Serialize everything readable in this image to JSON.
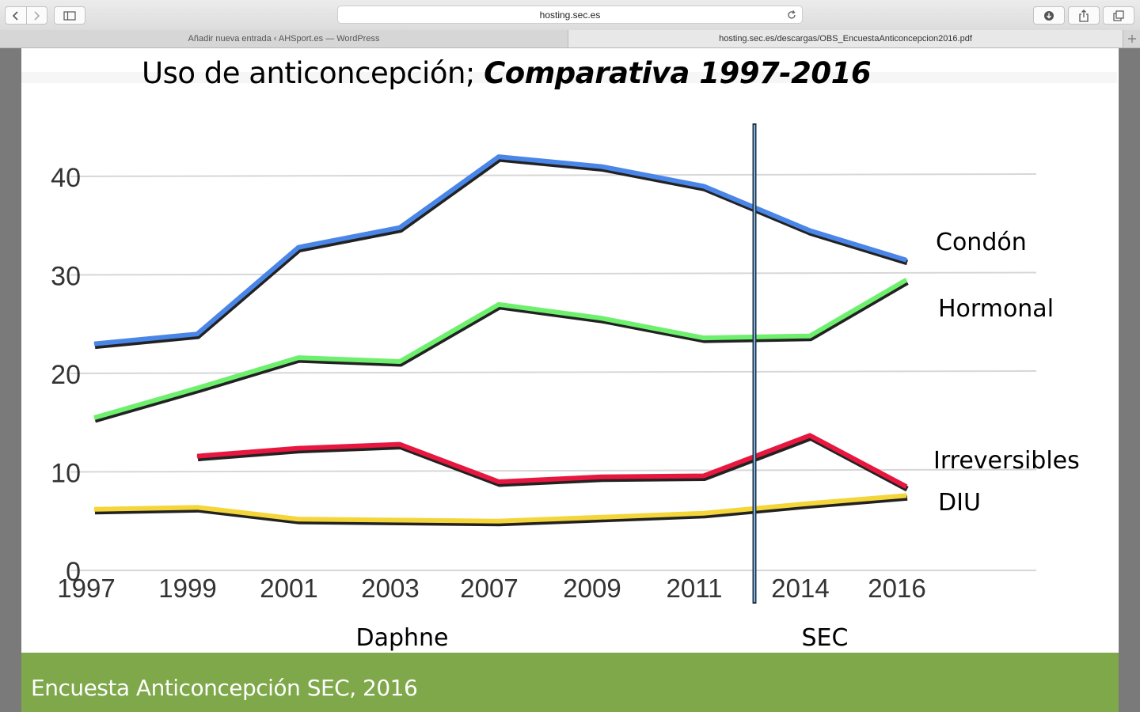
{
  "browser": {
    "address": "hosting.sec.es",
    "tabs": [
      {
        "label": "Añadir nueva entrada ‹ AHSport.es — WordPress"
      },
      {
        "label": "hosting.sec.es/descargas/OBS_EncuestaAnticoncepcion2016.pdf"
      }
    ]
  },
  "slide": {
    "title_plain": "Uso de anticoncepción; ",
    "title_emph": "Comparativa 1997-2016",
    "footer": "Encuesta Anticoncepción SEC, 2016",
    "group_labels": [
      "Daphne",
      "SEC"
    ]
  },
  "chart_data": {
    "type": "line",
    "title": "Uso de anticoncepción; Comparativa 1997-2016",
    "categories": [
      "1997",
      "1999",
      "2001",
      "2003",
      "2007",
      "2009",
      "2011",
      "2014",
      "2016"
    ],
    "yticks": [
      0,
      10,
      20,
      30,
      40
    ],
    "ylim": [
      0,
      45
    ],
    "grid": true,
    "legend": "right, inline labels",
    "divider_between": [
      "2011",
      "2014"
    ],
    "series": [
      {
        "name": "Condón",
        "color": "#4a86e8",
        "values": [
          23,
          24,
          32.8,
          34.8,
          42,
          41,
          39,
          34.5,
          31.5
        ]
      },
      {
        "name": "Hormonal",
        "color": "#6ef06e",
        "values": [
          15.5,
          18.5,
          21.6,
          21.2,
          27,
          25.6,
          23.6,
          23.8,
          29.5
        ]
      },
      {
        "name": "Irreversibles",
        "color": "#e8173f",
        "values": [
          null,
          11.6,
          12.4,
          12.8,
          9,
          9.5,
          9.6,
          13.7,
          8.5
        ]
      },
      {
        "name": "DIU",
        "color": "#f5d63a",
        "values": [
          6.2,
          6.4,
          5.2,
          5.1,
          5,
          5.4,
          5.8,
          6.8,
          7.6
        ]
      }
    ]
  }
}
